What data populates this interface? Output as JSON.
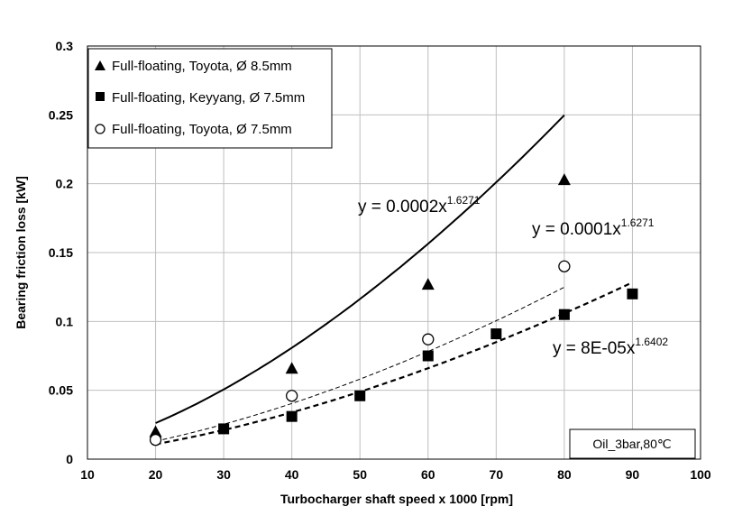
{
  "chart_data": {
    "type": "scatter",
    "xlabel": "Turbocharger shaft speed x 1000 [rpm]",
    "ylabel": "Bearing friction loss [kW]",
    "xlim": [
      10,
      100
    ],
    "ylim": [
      0,
      0.3
    ],
    "x_ticks": [
      "10",
      "20",
      "30",
      "40",
      "50",
      "60",
      "70",
      "80",
      "90",
      "100"
    ],
    "y_ticks": [
      "0",
      "0.05",
      "0.1",
      "0.15",
      "0.2",
      "0.25",
      "0.3"
    ],
    "grid": true,
    "legend_position": "top-left",
    "series": [
      {
        "name": "Full-floating, Toyota, Ø 8.5mm",
        "marker": "filled-triangle",
        "x": [
          20,
          40,
          60,
          80
        ],
        "y": [
          0.02,
          0.066,
          0.127,
          0.203
        ],
        "trendline": {
          "style": "solid",
          "coef": 0.0002,
          "exp": 1.6271,
          "x_range": [
            20,
            80
          ]
        }
      },
      {
        "name": "Full-floating, Keyyang, Ø 7.5mm",
        "marker": "filled-square",
        "x": [
          30,
          40,
          50,
          60,
          70,
          80,
          90
        ],
        "y": [
          0.022,
          0.031,
          0.046,
          0.075,
          0.091,
          0.105,
          0.12
        ],
        "trendline": {
          "style": "dashed",
          "coef": 8e-05,
          "exp": 1.6402,
          "x_range": [
            20,
            90
          ]
        }
      },
      {
        "name": "Full-floating, Toyota, Ø 7.5mm",
        "marker": "open-circle",
        "x": [
          20,
          40,
          60,
          80
        ],
        "y": [
          0.014,
          0.046,
          0.087,
          0.14
        ],
        "trendline": {
          "style": "thin-dashed",
          "coef": 0.0001,
          "exp": 1.6271,
          "x_range": [
            20,
            80
          ]
        }
      }
    ],
    "annotations": [
      {
        "base": "y = 0.0002x",
        "sup": "1.6271"
      },
      {
        "base": "y = 0.0001x",
        "sup": "1.6271"
      },
      {
        "base": "y = 8E-05x",
        "sup": "1.6402"
      }
    ],
    "condition_label": "Oil_3bar,80℃"
  }
}
